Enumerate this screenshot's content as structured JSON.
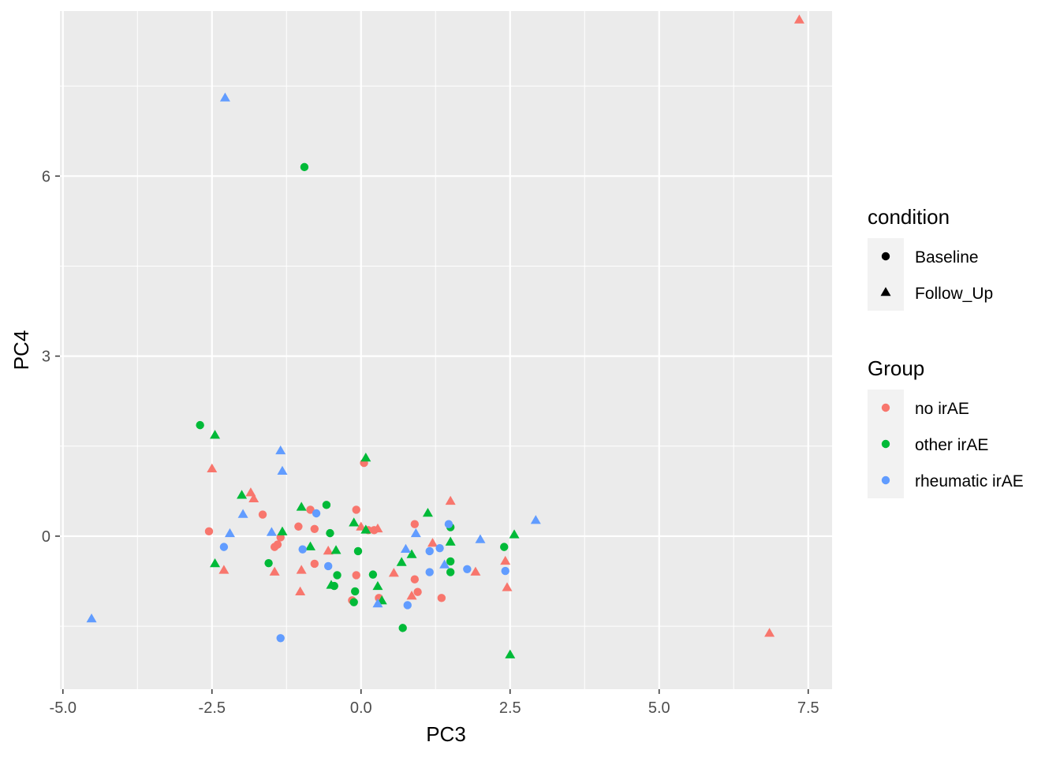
{
  "chart_data": {
    "type": "scatter",
    "title": "",
    "xlabel": "PC3",
    "ylabel": "PC4",
    "xlim": [
      -5.05,
      7.9
    ],
    "ylim": [
      -2.55,
      8.75
    ],
    "x_ticks": [
      -5.0,
      -2.5,
      0.0,
      2.5,
      5.0,
      7.5
    ],
    "x_tick_labels": [
      "-5.0",
      "-2.5",
      "0.0",
      "2.5",
      "5.0",
      "7.5"
    ],
    "y_ticks": [
      0,
      3,
      6
    ],
    "y_tick_labels": [
      "0",
      "3",
      "6"
    ],
    "grid": true,
    "legend_position": "right",
    "legends": [
      {
        "title": "condition",
        "kind": "shape",
        "entries": [
          {
            "label": "Baseline",
            "shape": "circle"
          },
          {
            "label": "Follow_Up",
            "shape": "triangle"
          }
        ]
      },
      {
        "title": "Group",
        "kind": "color",
        "entries": [
          {
            "label": "no irAE",
            "color": "#F8766D"
          },
          {
            "label": "other irAE",
            "color": "#00BA38"
          },
          {
            "label": "rheumatic irAE",
            "color": "#619CFF"
          }
        ]
      }
    ],
    "colors": {
      "no irAE": "#F8766D",
      "other irAE": "#00BA38",
      "rheumatic irAE": "#619CFF"
    },
    "series": [
      {
        "group": "no irAE",
        "condition": "Baseline",
        "points": [
          [
            -2.55,
            0.08
          ],
          [
            -1.65,
            0.36
          ],
          [
            -1.45,
            -0.18
          ],
          [
            -1.4,
            -0.14
          ],
          [
            -1.35,
            -0.02
          ],
          [
            -1.05,
            0.16
          ],
          [
            -0.85,
            0.44
          ],
          [
            -0.78,
            0.12
          ],
          [
            -0.78,
            -0.46
          ],
          [
            -0.08,
            0.44
          ],
          [
            -0.08,
            -0.65
          ],
          [
            0.05,
            1.22
          ],
          [
            0.22,
            0.1
          ],
          [
            0.3,
            -1.03
          ],
          [
            0.9,
            0.2
          ],
          [
            0.9,
            -0.72
          ],
          [
            0.95,
            -0.93
          ],
          [
            1.35,
            -1.03
          ],
          [
            -0.15,
            -1.07
          ],
          [
            0.12,
            0.1
          ]
        ]
      },
      {
        "group": "no irAE",
        "condition": "Follow_Up",
        "points": [
          [
            7.35,
            8.6
          ],
          [
            6.85,
            -1.62
          ],
          [
            -2.5,
            1.12
          ],
          [
            -2.3,
            -0.57
          ],
          [
            -1.85,
            0.72
          ],
          [
            -1.8,
            0.62
          ],
          [
            -1.45,
            -0.6
          ],
          [
            -1.0,
            -0.57
          ],
          [
            -1.02,
            -0.93
          ],
          [
            -0.55,
            -0.25
          ],
          [
            0.0,
            0.15
          ],
          [
            0.28,
            0.12
          ],
          [
            0.55,
            -0.62
          ],
          [
            0.85,
            -1.0
          ],
          [
            1.2,
            -0.12
          ],
          [
            1.5,
            0.58
          ],
          [
            1.92,
            -0.6
          ],
          [
            2.42,
            -0.42
          ],
          [
            2.45,
            -0.86
          ]
        ]
      },
      {
        "group": "other irAE",
        "condition": "Baseline",
        "points": [
          [
            -0.95,
            6.15
          ],
          [
            -2.7,
            1.85
          ],
          [
            -1.55,
            -0.45
          ],
          [
            -0.58,
            0.52
          ],
          [
            -0.52,
            0.05
          ],
          [
            -0.45,
            -0.83
          ],
          [
            -0.4,
            -0.65
          ],
          [
            -0.05,
            -0.25
          ],
          [
            -0.1,
            -0.92
          ],
          [
            -0.12,
            -1.1
          ],
          [
            0.2,
            -0.64
          ],
          [
            0.7,
            -1.53
          ],
          [
            1.5,
            0.15
          ],
          [
            1.5,
            -0.42
          ],
          [
            1.5,
            -0.6
          ],
          [
            2.4,
            -0.18
          ]
        ]
      },
      {
        "group": "other irAE",
        "condition": "Follow_Up",
        "points": [
          [
            -2.45,
            1.68
          ],
          [
            -2.45,
            -0.46
          ],
          [
            -2.0,
            0.68
          ],
          [
            -1.32,
            0.07
          ],
          [
            -1.0,
            0.48
          ],
          [
            -0.85,
            -0.18
          ],
          [
            -0.5,
            -0.82
          ],
          [
            -0.42,
            -0.24
          ],
          [
            -0.12,
            0.22
          ],
          [
            0.08,
            1.3
          ],
          [
            0.08,
            0.1
          ],
          [
            0.28,
            -0.84
          ],
          [
            0.35,
            -1.08
          ],
          [
            0.68,
            -0.44
          ],
          [
            0.85,
            -0.31
          ],
          [
            1.12,
            0.38
          ],
          [
            1.5,
            -0.1
          ],
          [
            2.5,
            -1.98
          ],
          [
            2.57,
            0.02
          ]
        ]
      },
      {
        "group": "rheumatic irAE",
        "condition": "Baseline",
        "points": [
          [
            -2.3,
            -0.18
          ],
          [
            -0.98,
            -0.22
          ],
          [
            -0.75,
            0.38
          ],
          [
            -0.55,
            -0.5
          ],
          [
            0.78,
            -1.15
          ],
          [
            1.15,
            -0.25
          ],
          [
            1.15,
            -0.6
          ],
          [
            1.32,
            -0.2
          ],
          [
            1.47,
            0.2
          ],
          [
            1.78,
            -0.55
          ],
          [
            2.42,
            -0.58
          ],
          [
            -1.35,
            -1.7
          ]
        ]
      },
      {
        "group": "rheumatic irAE",
        "condition": "Follow_Up",
        "points": [
          [
            -4.52,
            -1.38
          ],
          [
            -2.28,
            7.3
          ],
          [
            -2.2,
            0.04
          ],
          [
            -1.98,
            0.36
          ],
          [
            -1.5,
            0.06
          ],
          [
            -1.35,
            1.42
          ],
          [
            -1.32,
            1.08
          ],
          [
            0.28,
            -1.13
          ],
          [
            0.75,
            -0.22
          ],
          [
            0.92,
            0.04
          ],
          [
            1.4,
            -0.48
          ],
          [
            2.0,
            -0.06
          ],
          [
            2.93,
            0.26
          ]
        ]
      }
    ]
  }
}
